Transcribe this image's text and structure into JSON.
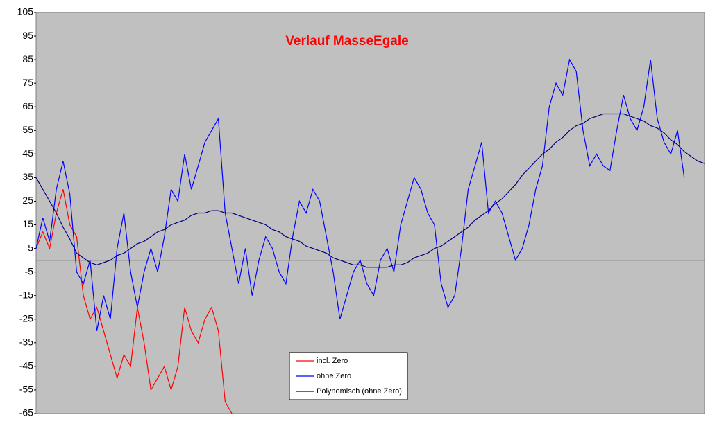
{
  "chart_data": {
    "type": "line",
    "title": "Verlauf MasseEgale",
    "ylim": [
      -65,
      105
    ],
    "yticks": [
      -65,
      -55,
      -45,
      -35,
      -25,
      -15,
      -5,
      5,
      15,
      25,
      35,
      45,
      55,
      65,
      75,
      85,
      95,
      105
    ],
    "legend": "bottom",
    "series": [
      {
        "name": "incl. Zero",
        "color": "#ff0000",
        "values": [
          5,
          12,
          5,
          20,
          30,
          15,
          10,
          -15,
          -25,
          -20,
          -30,
          -40,
          -50,
          -40,
          -45,
          -20,
          -35,
          -55,
          -50,
          -45,
          -55,
          -45,
          -20,
          -30,
          -35,
          -25,
          -20,
          -30,
          -60,
          -65,
          null,
          null,
          null,
          null,
          null,
          null,
          null,
          null,
          null,
          null,
          null,
          null,
          null,
          null,
          null,
          null,
          null,
          null,
          null,
          null,
          null,
          null,
          null,
          null,
          null,
          null,
          null,
          null,
          null,
          null,
          null,
          null,
          null,
          null,
          null,
          null,
          null,
          null,
          null,
          null,
          null,
          null,
          null,
          null,
          null,
          null,
          null,
          null,
          null,
          null,
          null,
          null,
          null,
          null,
          null,
          null,
          null,
          null,
          null,
          null,
          null,
          null,
          null,
          null,
          null,
          null,
          null,
          null,
          null,
          null
        ]
      },
      {
        "name": "ohne Zero",
        "color": "#0000ff",
        "values": [
          5,
          18,
          8,
          30,
          42,
          28,
          -5,
          -10,
          0,
          -30,
          -15,
          -25,
          5,
          20,
          -5,
          -20,
          -5,
          5,
          -5,
          10,
          30,
          25,
          45,
          30,
          40,
          50,
          55,
          60,
          20,
          5,
          -10,
          5,
          -15,
          0,
          10,
          5,
          -5,
          -10,
          10,
          25,
          20,
          30,
          25,
          10,
          -5,
          -25,
          -15,
          -5,
          0,
          -10,
          -15,
          0,
          5,
          -5,
          15,
          25,
          35,
          30,
          20,
          15,
          -10,
          -20,
          -15,
          5,
          30,
          40,
          50,
          20,
          25,
          20,
          10,
          0,
          5,
          15,
          30,
          40,
          65,
          75,
          70,
          85,
          80,
          55,
          40,
          45,
          40,
          38,
          55,
          70,
          60,
          55,
          65,
          85,
          60,
          50,
          45,
          55,
          35,
          null,
          null,
          null
        ]
      },
      {
        "name": "Polynomisch (ohne Zero)",
        "color": "#000080",
        "values": [
          35,
          30,
          25,
          20,
          14,
          9,
          3,
          1,
          -1,
          -2,
          -1,
          0,
          2,
          3,
          5,
          7,
          8,
          10,
          12,
          13,
          15,
          16,
          17,
          19,
          20,
          20,
          21,
          21,
          20,
          20,
          19,
          18,
          17,
          16,
          15,
          13,
          12,
          10,
          9,
          8,
          6,
          5,
          4,
          3,
          1,
          0,
          -1,
          -2,
          -2,
          -3,
          -3,
          -3,
          -3,
          -2,
          -2,
          -1,
          1,
          2,
          3,
          5,
          6,
          8,
          10,
          12,
          14,
          17,
          19,
          21,
          24,
          26,
          29,
          32,
          36,
          39,
          42,
          45,
          47,
          50,
          52,
          55,
          57,
          58,
          60,
          61,
          62,
          62,
          62,
          62,
          61,
          60,
          59,
          57,
          56,
          54,
          51,
          49,
          46,
          44,
          42,
          41
        ]
      }
    ]
  }
}
